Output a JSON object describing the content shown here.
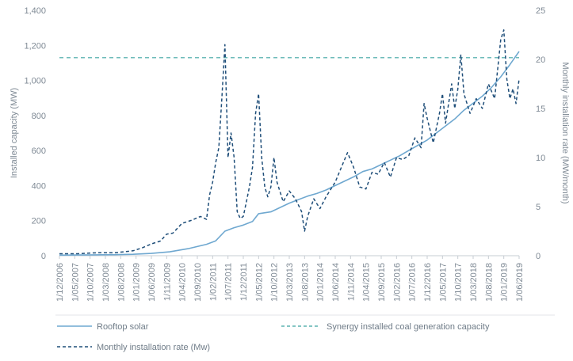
{
  "chart_data": {
    "type": "line",
    "title": "",
    "ylabel_left": "Installed capacity (MW)",
    "ylabel_right": "Monthly installation rate (MW/month)",
    "ylim_left": [
      0,
      1400
    ],
    "ylim_right": [
      0,
      25
    ],
    "yticks_left": [
      "0",
      "200",
      "400",
      "600",
      "800",
      "1,000",
      "1,200",
      "1,400"
    ],
    "yticks_right": [
      "0",
      "5",
      "10",
      "15",
      "20",
      "25"
    ],
    "x_start": "2006-12",
    "x_end": "2019-06",
    "xtick_labels": [
      "1/12/2006",
      "1/05/2007",
      "1/10/2007",
      "1/03/2008",
      "1/08/2008",
      "1/01/2009",
      "1/06/2009",
      "1/11/2009",
      "1/04/2010",
      "1/09/2010",
      "1/02/2011",
      "1/07/2011",
      "1/12/2011",
      "1/05/2012",
      "1/10/2012",
      "1/03/2013",
      "1/08/2013",
      "1/01/2014",
      "1/06/2014",
      "1/11/2014",
      "1/04/2015",
      "1/09/2015",
      "1/02/2016",
      "1/07/2016",
      "1/12/2016",
      "1/05/2017",
      "1/10/2017",
      "1/03/2018",
      "1/08/2018",
      "1/01/2019",
      "1/06/2019"
    ],
    "grid": false,
    "legend_position": "bottom",
    "colors": {
      "rooftop": "#6fa8d0",
      "coal": "#5bb3b0",
      "monthly": "#1f4e79",
      "axis": "#c7cdd3",
      "text": "#7f8a95"
    },
    "series": [
      {
        "name": "Rooftop solar",
        "axis": "left",
        "style": "solid",
        "points": [
          [
            "2006-12",
            3
          ],
          [
            "2007-06",
            4
          ],
          [
            "2007-12",
            5
          ],
          [
            "2008-06",
            6
          ],
          [
            "2008-12",
            8
          ],
          [
            "2009-06",
            13
          ],
          [
            "2009-12",
            22
          ],
          [
            "2010-06",
            40
          ],
          [
            "2010-12",
            65
          ],
          [
            "2011-03",
            85
          ],
          [
            "2011-06",
            140
          ],
          [
            "2011-09",
            160
          ],
          [
            "2011-12",
            175
          ],
          [
            "2012-03",
            195
          ],
          [
            "2012-05",
            240
          ],
          [
            "2012-09",
            250
          ],
          [
            "2012-12",
            275
          ],
          [
            "2013-03",
            300
          ],
          [
            "2013-06",
            320
          ],
          [
            "2013-09",
            340
          ],
          [
            "2013-12",
            355
          ],
          [
            "2014-03",
            375
          ],
          [
            "2014-06",
            400
          ],
          [
            "2014-09",
            425
          ],
          [
            "2014-12",
            450
          ],
          [
            "2015-03",
            480
          ],
          [
            "2015-06",
            495
          ],
          [
            "2015-09",
            520
          ],
          [
            "2015-12",
            545
          ],
          [
            "2016-03",
            570
          ],
          [
            "2016-06",
            600
          ],
          [
            "2016-09",
            630
          ],
          [
            "2016-12",
            660
          ],
          [
            "2017-03",
            700
          ],
          [
            "2017-06",
            740
          ],
          [
            "2017-09",
            780
          ],
          [
            "2017-12",
            830
          ],
          [
            "2018-03",
            870
          ],
          [
            "2018-06",
            910
          ],
          [
            "2018-09",
            960
          ],
          [
            "2018-12",
            1020
          ],
          [
            "2019-03",
            1090
          ],
          [
            "2019-06",
            1165
          ]
        ]
      },
      {
        "name": "Synergy installed coal generation capacity",
        "axis": "left",
        "style": "dashed",
        "points": [
          [
            "2006-12",
            1130
          ],
          [
            "2019-06",
            1130
          ]
        ]
      },
      {
        "name": "Monthly installation rate (Mw)",
        "axis": "right",
        "style": "dashed",
        "points": [
          [
            "2006-12",
            0.2
          ],
          [
            "2007-06",
            0.2
          ],
          [
            "2007-12",
            0.3
          ],
          [
            "2008-06",
            0.3
          ],
          [
            "2008-12",
            0.5
          ],
          [
            "2009-03",
            0.8
          ],
          [
            "2009-06",
            1.2
          ],
          [
            "2009-09",
            1.5
          ],
          [
            "2009-11",
            2.2
          ],
          [
            "2010-01",
            2.3
          ],
          [
            "2010-04",
            3.3
          ],
          [
            "2010-07",
            3.6
          ],
          [
            "2010-10",
            4.0
          ],
          [
            "2010-12",
            3.7
          ],
          [
            "2011-01",
            6.2
          ],
          [
            "2011-02",
            7.5
          ],
          [
            "2011-03",
            9.5
          ],
          [
            "2011-04",
            11.0
          ],
          [
            "2011-05",
            16.0
          ],
          [
            "2011-06",
            21.5
          ],
          [
            "2011-07",
            10.0
          ],
          [
            "2011-08",
            12.5
          ],
          [
            "2011-09",
            10.0
          ],
          [
            "2011-10",
            4.5
          ],
          [
            "2011-11",
            3.8
          ],
          [
            "2011-12",
            4.0
          ],
          [
            "2012-01",
            5.5
          ],
          [
            "2012-02",
            7.0
          ],
          [
            "2012-03",
            9.0
          ],
          [
            "2012-04",
            14.5
          ],
          [
            "2012-05",
            16.5
          ],
          [
            "2012-06",
            10.0
          ],
          [
            "2012-07",
            7.0
          ],
          [
            "2012-08",
            6.0
          ],
          [
            "2012-09",
            7.0
          ],
          [
            "2012-10",
            10.0
          ],
          [
            "2012-11",
            7.5
          ],
          [
            "2012-12",
            6.5
          ],
          [
            "2013-01",
            5.5
          ],
          [
            "2013-03",
            6.6
          ],
          [
            "2013-05",
            5.8
          ],
          [
            "2013-07",
            4.5
          ],
          [
            "2013-08",
            2.5
          ],
          [
            "2013-09",
            4.0
          ],
          [
            "2013-11",
            5.8
          ],
          [
            "2014-01",
            4.8
          ],
          [
            "2014-03",
            6.0
          ],
          [
            "2014-06",
            7.5
          ],
          [
            "2014-08",
            9.0
          ],
          [
            "2014-10",
            10.5
          ],
          [
            "2014-12",
            9.0
          ],
          [
            "2015-02",
            7.0
          ],
          [
            "2015-04",
            6.8
          ],
          [
            "2015-06",
            8.5
          ],
          [
            "2015-08",
            8.3
          ],
          [
            "2015-10",
            9.5
          ],
          [
            "2015-12",
            8.0
          ],
          [
            "2016-02",
            10.0
          ],
          [
            "2016-04",
            9.8
          ],
          [
            "2016-06",
            10.2
          ],
          [
            "2016-08",
            12.0
          ],
          [
            "2016-10",
            11.0
          ],
          [
            "2016-11",
            15.5
          ],
          [
            "2016-12",
            14.0
          ],
          [
            "2017-02",
            11.5
          ],
          [
            "2017-04",
            14.5
          ],
          [
            "2017-05",
            16.5
          ],
          [
            "2017-06",
            13.5
          ],
          [
            "2017-08",
            17.5
          ],
          [
            "2017-09",
            15.0
          ],
          [
            "2017-10",
            17.0
          ],
          [
            "2017-11",
            20.5
          ],
          [
            "2017-12",
            16.5
          ],
          [
            "2018-02",
            14.5
          ],
          [
            "2018-04",
            16.0
          ],
          [
            "2018-06",
            15.0
          ],
          [
            "2018-08",
            17.5
          ],
          [
            "2018-10",
            16.0
          ],
          [
            "2018-12",
            22.0
          ],
          [
            "2019-01",
            23.0
          ],
          [
            "2019-02",
            18.0
          ],
          [
            "2019-03",
            16.0
          ],
          [
            "2019-04",
            17.0
          ],
          [
            "2019-05",
            15.5
          ],
          [
            "2019-06",
            18.0
          ]
        ]
      }
    ]
  }
}
